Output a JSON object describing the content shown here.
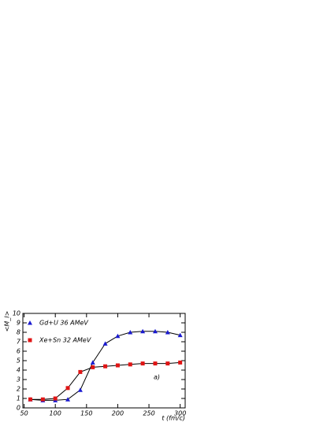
{
  "chart_data": {
    "type": "line",
    "x_label": "t (fm/c)",
    "y_label": "<M_I>",
    "annotation": "a)",
    "x": [
      60,
      80,
      100,
      120,
      140,
      160,
      180,
      200,
      220,
      240,
      260,
      280,
      300
    ],
    "series": [
      {
        "name": "Gd+U 36 AMeV",
        "color": "#1a1ad0",
        "marker": "triangle",
        "values": [
          0.9,
          0.8,
          0.8,
          0.9,
          1.9,
          4.8,
          6.8,
          7.6,
          8.0,
          8.1,
          8.1,
          8.0,
          7.7
        ]
      },
      {
        "name": "Xe+Sn 32 AMeV",
        "color": "#e01515",
        "marker": "square",
        "values": [
          0.9,
          0.9,
          1.0,
          2.1,
          3.8,
          4.3,
          4.4,
          4.5,
          4.6,
          4.7,
          4.7,
          4.7,
          4.8
        ]
      }
    ],
    "line_color": "#000000",
    "xlim": [
      48,
      308
    ],
    "xticks": [
      50,
      100,
      150,
      200,
      250,
      300
    ],
    "ylim": [
      0,
      10
    ],
    "yticks": [
      0,
      1,
      2,
      3,
      4,
      5,
      6,
      7,
      8,
      9,
      10
    ]
  }
}
